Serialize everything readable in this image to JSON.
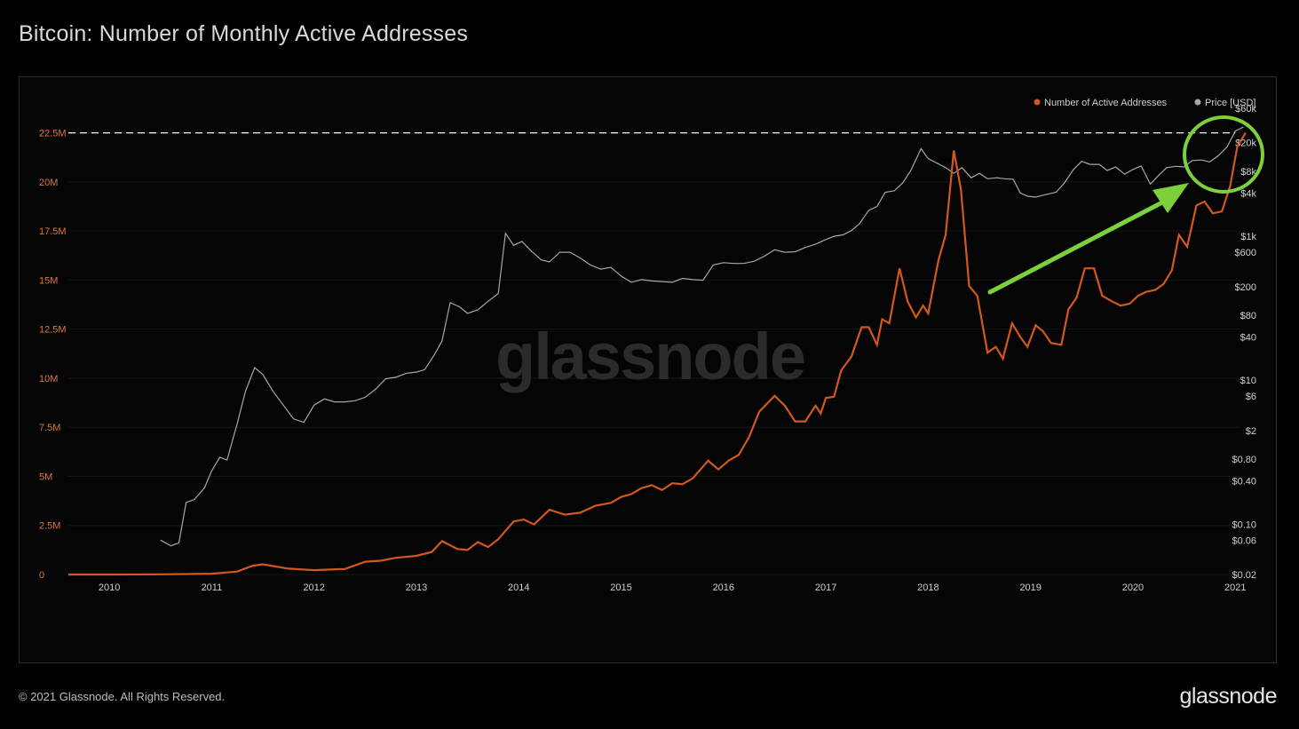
{
  "title": "Bitcoin: Number of Monthly Active Addresses",
  "footer": {
    "copyright": "© 2021 Glassnode. All Rights Reserved.",
    "brand": "glassnode"
  },
  "watermark": "glassnode",
  "colors": {
    "addresses": "#d2581e",
    "price": "#a8a8a8",
    "annotation": "#7cd03b",
    "left_axis": "#e0783a"
  },
  "chart_data": {
    "type": "line",
    "title": "Bitcoin: Number of Monthly Active Addresses",
    "x_range": [
      2009.6,
      2021.05
    ],
    "x_ticks": [
      "2010",
      "2011",
      "2012",
      "2013",
      "2014",
      "2015",
      "2016",
      "2017",
      "2018",
      "2019",
      "2020",
      "2021"
    ],
    "y_left": {
      "range": [
        0,
        23750000
      ],
      "scale": "linear",
      "ticks": [
        {
          "value": 0,
          "label": "0"
        },
        {
          "value": 2500000,
          "label": "2.5M"
        },
        {
          "value": 5000000,
          "label": "5M"
        },
        {
          "value": 7500000,
          "label": "7.5M"
        },
        {
          "value": 10000000,
          "label": "10M"
        },
        {
          "value": 12500000,
          "label": "12.5M"
        },
        {
          "value": 15000000,
          "label": "15M"
        },
        {
          "value": 17500000,
          "label": "17.5M"
        },
        {
          "value": 20000000,
          "label": "20M"
        },
        {
          "value": 22500000,
          "label": "22.5M"
        }
      ]
    },
    "y_right": {
      "range": [
        0.02,
        60000
      ],
      "scale": "log",
      "ticks": [
        {
          "value": 60000,
          "label": "$60k"
        },
        {
          "value": 20000,
          "label": "$20k"
        },
        {
          "value": 8000,
          "label": "$8k"
        },
        {
          "value": 4000,
          "label": "$4k"
        },
        {
          "value": 1000,
          "label": "$1k"
        },
        {
          "value": 600,
          "label": "$600"
        },
        {
          "value": 200,
          "label": "$200"
        },
        {
          "value": 80,
          "label": "$80"
        },
        {
          "value": 40,
          "label": "$40"
        },
        {
          "value": 10,
          "label": "$10"
        },
        {
          "value": 6,
          "label": "$6"
        },
        {
          "value": 2,
          "label": "$2"
        },
        {
          "value": 0.8,
          "label": "$0.80"
        },
        {
          "value": 0.4,
          "label": "$0.40"
        },
        {
          "value": 0.1,
          "label": "$0.10"
        },
        {
          "value": 0.06,
          "label": "$0.06"
        },
        {
          "value": 0.02,
          "label": "$0.02"
        }
      ]
    },
    "legend": {
      "placement": "top-right",
      "entries": [
        {
          "name": "Number of Active Addresses",
          "color": "#d2581e"
        },
        {
          "name": "Price [USD]",
          "color": "#a8a8a8"
        }
      ]
    },
    "grid": true,
    "series": [
      {
        "name": "Number of Active Addresses",
        "axis": "left",
        "points": [
          [
            2009.6,
            0
          ],
          [
            2010.0,
            0
          ],
          [
            2010.5,
            10000
          ],
          [
            2011.0,
            40000
          ],
          [
            2011.25,
            150000
          ],
          [
            2011.4,
            450000
          ],
          [
            2011.5,
            520000
          ],
          [
            2011.75,
            300000
          ],
          [
            2012.0,
            220000
          ],
          [
            2012.3,
            280000
          ],
          [
            2012.5,
            650000
          ],
          [
            2012.65,
            700000
          ],
          [
            2012.8,
            850000
          ],
          [
            2013.0,
            950000
          ],
          [
            2013.15,
            1150000
          ],
          [
            2013.25,
            1700000
          ],
          [
            2013.4,
            1300000
          ],
          [
            2013.5,
            1250000
          ],
          [
            2013.6,
            1650000
          ],
          [
            2013.7,
            1400000
          ],
          [
            2013.8,
            1800000
          ],
          [
            2013.95,
            2700000
          ],
          [
            2014.05,
            2800000
          ],
          [
            2014.15,
            2550000
          ],
          [
            2014.3,
            3300000
          ],
          [
            2014.45,
            3050000
          ],
          [
            2014.6,
            3150000
          ],
          [
            2014.75,
            3500000
          ],
          [
            2014.9,
            3650000
          ],
          [
            2015.0,
            3950000
          ],
          [
            2015.1,
            4100000
          ],
          [
            2015.2,
            4400000
          ],
          [
            2015.3,
            4550000
          ],
          [
            2015.4,
            4300000
          ],
          [
            2015.5,
            4650000
          ],
          [
            2015.6,
            4600000
          ],
          [
            2015.7,
            4900000
          ],
          [
            2015.85,
            5800000
          ],
          [
            2015.95,
            5350000
          ],
          [
            2016.05,
            5800000
          ],
          [
            2016.15,
            6100000
          ],
          [
            2016.25,
            7000000
          ],
          [
            2016.35,
            8300000
          ],
          [
            2016.5,
            9100000
          ],
          [
            2016.6,
            8600000
          ],
          [
            2016.7,
            7800000
          ],
          [
            2016.8,
            7800000
          ],
          [
            2016.9,
            8600000
          ],
          [
            2016.95,
            8200000
          ],
          [
            2017.0,
            9000000
          ],
          [
            2017.08,
            9050000
          ],
          [
            2017.15,
            10400000
          ],
          [
            2017.25,
            11100000
          ],
          [
            2017.35,
            12600000
          ],
          [
            2017.42,
            12600000
          ],
          [
            2017.5,
            11700000
          ],
          [
            2017.55,
            13000000
          ],
          [
            2017.62,
            12800000
          ],
          [
            2017.72,
            15600000
          ],
          [
            2017.8,
            13900000
          ],
          [
            2017.88,
            13100000
          ],
          [
            2017.95,
            13700000
          ],
          [
            2018.0,
            13300000
          ],
          [
            2018.1,
            16000000
          ],
          [
            2018.17,
            17300000
          ],
          [
            2018.25,
            21600000
          ],
          [
            2018.32,
            19600000
          ],
          [
            2018.4,
            14700000
          ],
          [
            2018.48,
            14200000
          ],
          [
            2018.58,
            11300000
          ],
          [
            2018.66,
            11600000
          ],
          [
            2018.73,
            11000000
          ],
          [
            2018.82,
            12800000
          ],
          [
            2018.9,
            12100000
          ],
          [
            2018.97,
            11600000
          ],
          [
            2019.05,
            12700000
          ],
          [
            2019.12,
            12400000
          ],
          [
            2019.2,
            11800000
          ],
          [
            2019.3,
            11700000
          ],
          [
            2019.37,
            13500000
          ],
          [
            2019.45,
            14100000
          ],
          [
            2019.53,
            15600000
          ],
          [
            2019.62,
            15600000
          ],
          [
            2019.7,
            14200000
          ],
          [
            2019.8,
            13900000
          ],
          [
            2019.88,
            13700000
          ],
          [
            2019.97,
            13800000
          ],
          [
            2020.05,
            14200000
          ],
          [
            2020.13,
            14400000
          ],
          [
            2020.22,
            14500000
          ],
          [
            2020.3,
            14800000
          ],
          [
            2020.38,
            15500000
          ],
          [
            2020.45,
            17300000
          ],
          [
            2020.53,
            16700000
          ],
          [
            2020.62,
            18800000
          ],
          [
            2020.7,
            19000000
          ],
          [
            2020.78,
            18400000
          ],
          [
            2020.87,
            18500000
          ],
          [
            2020.95,
            19800000
          ],
          [
            2021.02,
            21800000
          ],
          [
            2021.1,
            22500000
          ]
        ]
      },
      {
        "name": "Price [USD]",
        "axis": "right",
        "points": [
          [
            2010.5,
            0.06
          ],
          [
            2010.6,
            0.05
          ],
          [
            2010.68,
            0.055
          ],
          [
            2010.75,
            0.2
          ],
          [
            2010.83,
            0.22
          ],
          [
            2010.93,
            0.32
          ],
          [
            2011.0,
            0.55
          ],
          [
            2011.08,
            0.85
          ],
          [
            2011.15,
            0.78
          ],
          [
            2011.25,
            2.5
          ],
          [
            2011.33,
            7
          ],
          [
            2011.42,
            15
          ],
          [
            2011.5,
            12
          ],
          [
            2011.6,
            7
          ],
          [
            2011.7,
            4.5
          ],
          [
            2011.8,
            2.9
          ],
          [
            2011.9,
            2.6
          ],
          [
            2012.0,
            4.5
          ],
          [
            2012.1,
            5.5
          ],
          [
            2012.2,
            5
          ],
          [
            2012.3,
            5
          ],
          [
            2012.4,
            5.2
          ],
          [
            2012.5,
            5.8
          ],
          [
            2012.6,
            7.5
          ],
          [
            2012.7,
            10.5
          ],
          [
            2012.8,
            11
          ],
          [
            2012.9,
            12.5
          ],
          [
            2013.0,
            13
          ],
          [
            2013.08,
            14
          ],
          [
            2013.17,
            22
          ],
          [
            2013.25,
            35
          ],
          [
            2013.33,
            120
          ],
          [
            2013.42,
            105
          ],
          [
            2013.5,
            85
          ],
          [
            2013.6,
            95
          ],
          [
            2013.7,
            125
          ],
          [
            2013.8,
            160
          ],
          [
            2013.87,
            1100
          ],
          [
            2013.95,
            750
          ],
          [
            2014.03,
            850
          ],
          [
            2014.12,
            630
          ],
          [
            2014.22,
            470
          ],
          [
            2014.3,
            440
          ],
          [
            2014.4,
            600
          ],
          [
            2014.5,
            600
          ],
          [
            2014.6,
            500
          ],
          [
            2014.7,
            400
          ],
          [
            2014.8,
            350
          ],
          [
            2014.9,
            370
          ],
          [
            2015.0,
            280
          ],
          [
            2015.1,
            230
          ],
          [
            2015.2,
            250
          ],
          [
            2015.3,
            240
          ],
          [
            2015.4,
            235
          ],
          [
            2015.5,
            230
          ],
          [
            2015.6,
            260
          ],
          [
            2015.7,
            250
          ],
          [
            2015.8,
            245
          ],
          [
            2015.9,
            400
          ],
          [
            2016.0,
            430
          ],
          [
            2016.1,
            420
          ],
          [
            2016.2,
            420
          ],
          [
            2016.3,
            450
          ],
          [
            2016.4,
            530
          ],
          [
            2016.5,
            650
          ],
          [
            2016.6,
            600
          ],
          [
            2016.7,
            610
          ],
          [
            2016.8,
            700
          ],
          [
            2016.9,
            780
          ],
          [
            2017.0,
            900
          ],
          [
            2017.08,
            1000
          ],
          [
            2017.17,
            1050
          ],
          [
            2017.25,
            1200
          ],
          [
            2017.33,
            1500
          ],
          [
            2017.42,
            2300
          ],
          [
            2017.5,
            2600
          ],
          [
            2017.58,
            4100
          ],
          [
            2017.67,
            4300
          ],
          [
            2017.75,
            5500
          ],
          [
            2017.83,
            8200
          ],
          [
            2017.93,
            16500
          ],
          [
            2018.0,
            12000
          ],
          [
            2018.08,
            10500
          ],
          [
            2018.17,
            9000
          ],
          [
            2018.25,
            7500
          ],
          [
            2018.33,
            9000
          ],
          [
            2018.42,
            6500
          ],
          [
            2018.5,
            7500
          ],
          [
            2018.58,
            6300
          ],
          [
            2018.67,
            6500
          ],
          [
            2018.75,
            6300
          ],
          [
            2018.83,
            6200
          ],
          [
            2018.9,
            4000
          ],
          [
            2018.97,
            3600
          ],
          [
            2019.05,
            3500
          ],
          [
            2019.15,
            3800
          ],
          [
            2019.25,
            4100
          ],
          [
            2019.33,
            5500
          ],
          [
            2019.42,
            8500
          ],
          [
            2019.5,
            11000
          ],
          [
            2019.58,
            10000
          ],
          [
            2019.67,
            10000
          ],
          [
            2019.75,
            8200
          ],
          [
            2019.83,
            9200
          ],
          [
            2019.92,
            7300
          ],
          [
            2020.0,
            8500
          ],
          [
            2020.08,
            9500
          ],
          [
            2020.17,
            5300
          ],
          [
            2020.25,
            7000
          ],
          [
            2020.33,
            9000
          ],
          [
            2020.42,
            9400
          ],
          [
            2020.5,
            9200
          ],
          [
            2020.58,
            11300
          ],
          [
            2020.67,
            11500
          ],
          [
            2020.75,
            10800
          ],
          [
            2020.83,
            13000
          ],
          [
            2020.92,
            17500
          ],
          [
            2021.0,
            29000
          ],
          [
            2021.08,
            33000
          ]
        ]
      }
    ],
    "annotations": [
      {
        "type": "reference-line",
        "axis": "left",
        "value": 22500000,
        "style": "dashed"
      },
      {
        "type": "circle",
        "note": "highlight"
      },
      {
        "type": "arrow",
        "note": "pointer"
      }
    ]
  }
}
